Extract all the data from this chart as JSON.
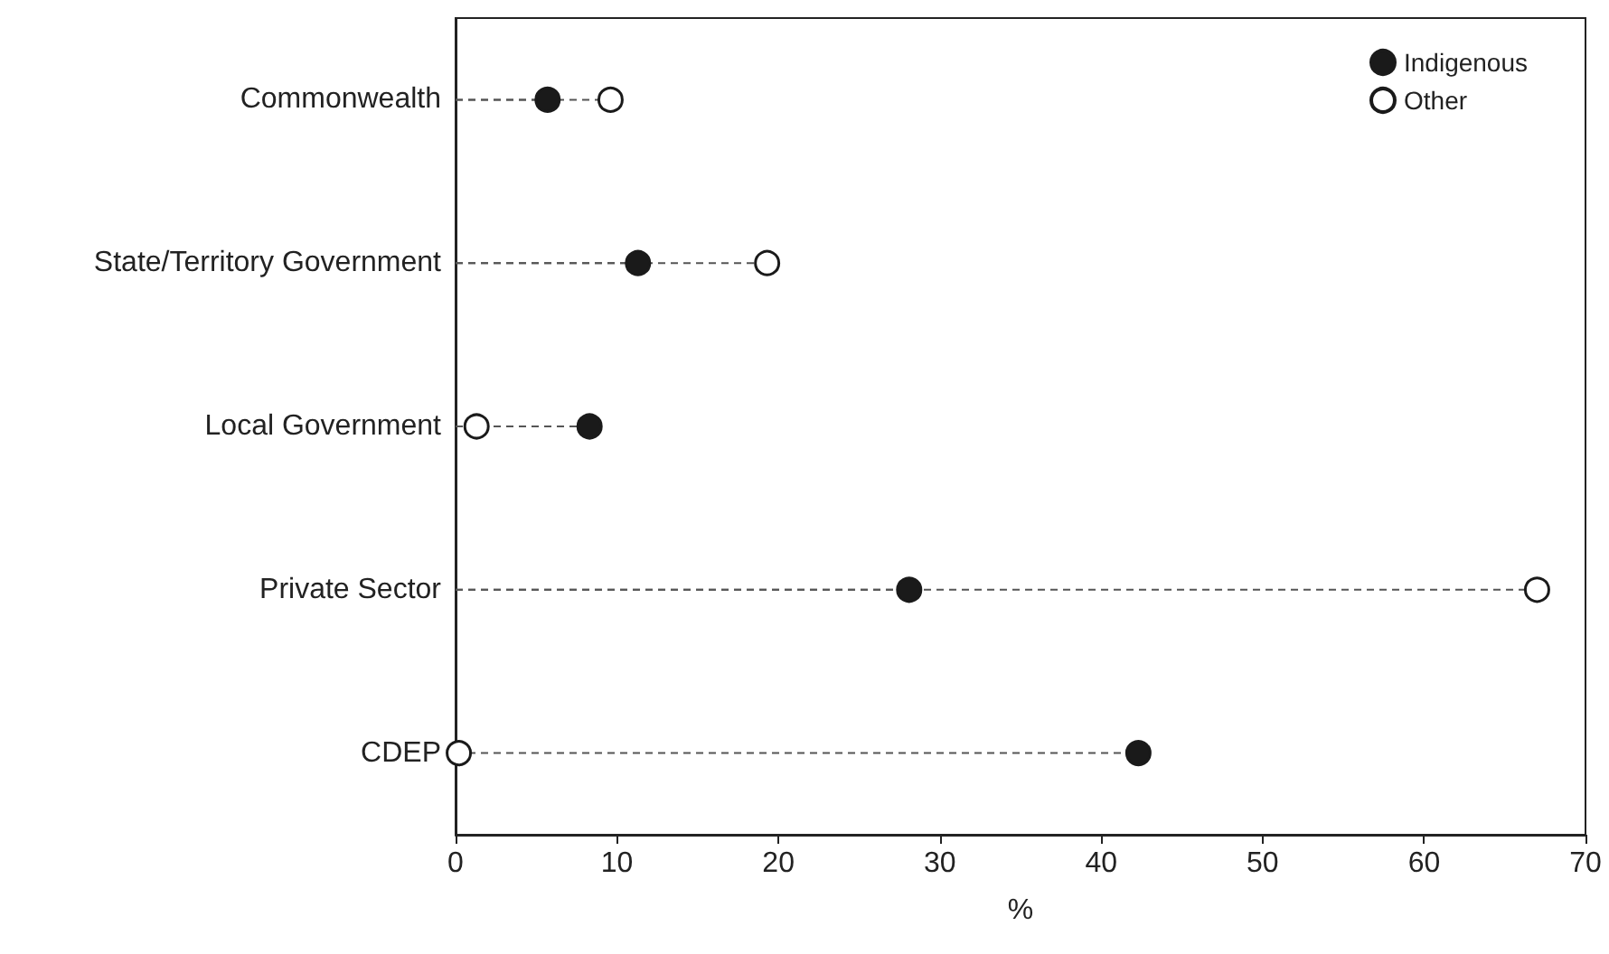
{
  "chart_data": {
    "type": "lollipop",
    "orientation": "horizontal",
    "xlabel": "%",
    "categories": [
      "Commonwealth",
      "State/Territory Government",
      "Local Government",
      "Private Sector",
      "CDEP"
    ],
    "series": [
      {
        "name": "Indigenous",
        "color": "#1a1a1a",
        "values": [
          5.7,
          11.3,
          8.3,
          28.1,
          42.3
        ]
      },
      {
        "name": "Other",
        "color": "#ffffff",
        "values": [
          9.6,
          19.3,
          1.3,
          67.0,
          0.2
        ]
      }
    ],
    "xlim": [
      0,
      70
    ],
    "xticks": [
      0,
      10,
      20,
      30,
      40,
      50,
      60,
      70
    ],
    "grid": false,
    "legend": "top right",
    "marker": "circle",
    "line_style": "dashed"
  }
}
